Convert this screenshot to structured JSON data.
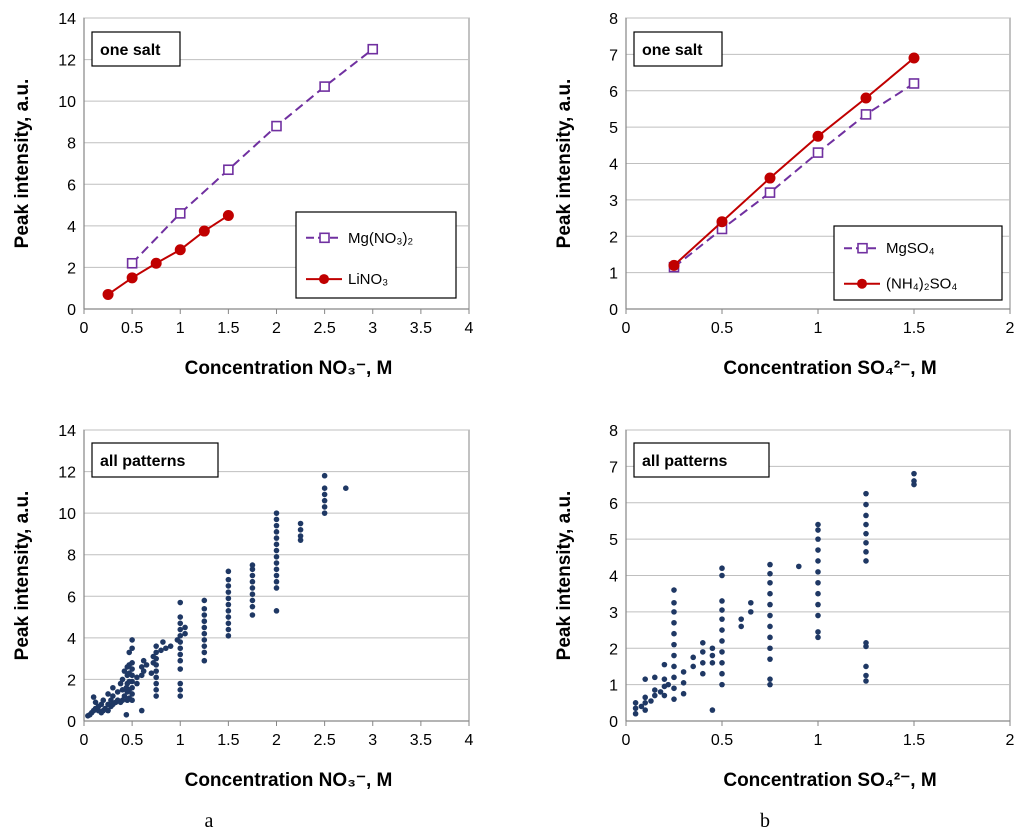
{
  "panel_labels": [
    "a",
    "b"
  ],
  "chart_data": [
    {
      "type": "line",
      "panel": "top-left",
      "title": "one salt",
      "xlabel": "Concentration NO₃⁻, M",
      "ylabel": "Peak intensity, a.u.",
      "xlim": [
        0,
        4
      ],
      "ylim": [
        0,
        14
      ],
      "xticks": [
        "0",
        "0.5",
        "1",
        "1.5",
        "2",
        "2.5",
        "3",
        "3.5",
        "4"
      ],
      "yticks": [
        "0",
        "2",
        "4",
        "6",
        "8",
        "10",
        "12",
        "14"
      ],
      "grid": true,
      "legend_position": "bottom-right",
      "series": [
        {
          "name": "Mg(NO₃)₂",
          "color": "#7030a0",
          "marker": "square-open",
          "line": "dashed",
          "x": [
            0.5,
            1.0,
            1.5,
            2.0,
            2.5,
            3.0
          ],
          "y": [
            2.2,
            4.6,
            6.7,
            8.8,
            10.7,
            12.5
          ]
        },
        {
          "name": "LiNO₃",
          "color": "#c00000",
          "marker": "circle-filled",
          "line": "solid",
          "x": [
            0.25,
            0.5,
            0.75,
            1.0,
            1.25,
            1.5
          ],
          "y": [
            0.7,
            1.5,
            2.2,
            2.85,
            3.75,
            4.5
          ]
        }
      ]
    },
    {
      "type": "line",
      "panel": "top-right",
      "title": "one salt",
      "xlabel": "Concentration SO₄²⁻, M",
      "ylabel": "Peak intensity, a.u.",
      "xlim": [
        0,
        2
      ],
      "ylim": [
        0,
        8
      ],
      "xticks": [
        "0",
        "0.5",
        "1",
        "1.5",
        "2"
      ],
      "yticks": [
        "0",
        "1",
        "2",
        "3",
        "4",
        "5",
        "6",
        "7",
        "8"
      ],
      "grid": true,
      "legend_position": "bottom-right",
      "series": [
        {
          "name": "MgSO₄",
          "color": "#7030a0",
          "marker": "square-open",
          "line": "dashed",
          "x": [
            0.25,
            0.5,
            0.75,
            1.0,
            1.25,
            1.5
          ],
          "y": [
            1.15,
            2.2,
            3.2,
            4.3,
            5.35,
            6.2
          ]
        },
        {
          "name": "(NH₄)₂SO₄",
          "color": "#c00000",
          "marker": "circle-filled",
          "line": "solid",
          "x": [
            0.25,
            0.5,
            0.75,
            1.0,
            1.25,
            1.5
          ],
          "y": [
            1.2,
            2.4,
            3.6,
            4.75,
            5.8,
            6.9
          ]
        }
      ]
    },
    {
      "type": "scatter",
      "panel": "bottom-left",
      "title": "all patterns",
      "xlabel": "Concentration NO₃⁻, M",
      "ylabel": "Peak intensity, a.u.",
      "xlim": [
        0,
        4
      ],
      "ylim": [
        0,
        14
      ],
      "xticks": [
        "0",
        "0.5",
        "1",
        "1.5",
        "2",
        "2.5",
        "3",
        "3.5",
        "4"
      ],
      "yticks": [
        "0",
        "2",
        "4",
        "6",
        "8",
        "10",
        "12",
        "14"
      ],
      "grid": true,
      "color": "#1f3864",
      "points": [
        [
          0.04,
          0.25
        ],
        [
          0.06,
          0.3
        ],
        [
          0.08,
          0.4
        ],
        [
          0.1,
          0.5
        ],
        [
          0.1,
          1.15
        ],
        [
          0.12,
          0.6
        ],
        [
          0.12,
          0.9
        ],
        [
          0.15,
          0.5
        ],
        [
          0.15,
          0.7
        ],
        [
          0.18,
          0.4
        ],
        [
          0.18,
          0.8
        ],
        [
          0.2,
          0.5
        ],
        [
          0.2,
          1.0
        ],
        [
          0.22,
          0.6
        ],
        [
          0.25,
          0.5
        ],
        [
          0.25,
          0.8
        ],
        [
          0.25,
          1.3
        ],
        [
          0.28,
          0.7
        ],
        [
          0.28,
          1.0
        ],
        [
          0.3,
          0.8
        ],
        [
          0.3,
          1.2
        ],
        [
          0.3,
          1.6
        ],
        [
          0.33,
          0.9
        ],
        [
          0.35,
          1.0
        ],
        [
          0.35,
          1.4
        ],
        [
          0.38,
          0.9
        ],
        [
          0.38,
          1.8
        ],
        [
          0.4,
          1.0
        ],
        [
          0.4,
          1.5
        ],
        [
          0.4,
          2.0
        ],
        [
          0.42,
          1.2
        ],
        [
          0.42,
          2.4
        ],
        [
          0.44,
          0.3
        ],
        [
          0.44,
          1.6
        ],
        [
          0.45,
          1.0
        ],
        [
          0.45,
          1.4
        ],
        [
          0.45,
          1.8
        ],
        [
          0.45,
          2.2
        ],
        [
          0.45,
          2.6
        ],
        [
          0.47,
          1.1
        ],
        [
          0.47,
          1.5
        ],
        [
          0.47,
          1.9
        ],
        [
          0.47,
          2.3
        ],
        [
          0.47,
          2.7
        ],
        [
          0.47,
          3.3
        ],
        [
          0.5,
          1.0
        ],
        [
          0.5,
          1.3
        ],
        [
          0.5,
          1.6
        ],
        [
          0.5,
          1.9
        ],
        [
          0.5,
          2.2
        ],
        [
          0.5,
          2.5
        ],
        [
          0.5,
          2.8
        ],
        [
          0.5,
          3.5
        ],
        [
          0.5,
          3.9
        ],
        [
          0.55,
          1.8
        ],
        [
          0.55,
          2.1
        ],
        [
          0.6,
          2.2
        ],
        [
          0.6,
          2.6
        ],
        [
          0.6,
          0.5
        ],
        [
          0.62,
          2.4
        ],
        [
          0.62,
          2.9
        ],
        [
          0.65,
          2.7
        ],
        [
          0.7,
          2.3
        ],
        [
          0.72,
          2.8
        ],
        [
          0.72,
          3.1
        ],
        [
          0.75,
          1.2
        ],
        [
          0.75,
          1.5
        ],
        [
          0.75,
          1.8
        ],
        [
          0.75,
          2.1
        ],
        [
          0.75,
          2.4
        ],
        [
          0.75,
          2.7
        ],
        [
          0.75,
          3.0
        ],
        [
          0.75,
          3.3
        ],
        [
          0.75,
          3.6
        ],
        [
          0.8,
          3.4
        ],
        [
          0.82,
          3.8
        ],
        [
          0.85,
          3.5
        ],
        [
          0.9,
          3.6
        ],
        [
          0.97,
          3.9
        ],
        [
          1.0,
          1.2
        ],
        [
          1.0,
          1.5
        ],
        [
          1.0,
          1.8
        ],
        [
          1.0,
          2.5
        ],
        [
          1.0,
          2.9
        ],
        [
          1.0,
          3.2
        ],
        [
          1.0,
          3.5
        ],
        [
          1.0,
          3.8
        ],
        [
          1.0,
          4.1
        ],
        [
          1.0,
          4.4
        ],
        [
          1.0,
          4.7
        ],
        [
          1.0,
          5.0
        ],
        [
          1.0,
          5.7
        ],
        [
          1.05,
          4.2
        ],
        [
          1.05,
          4.5
        ],
        [
          1.25,
          2.9
        ],
        [
          1.25,
          3.3
        ],
        [
          1.25,
          3.6
        ],
        [
          1.25,
          3.9
        ],
        [
          1.25,
          4.2
        ],
        [
          1.25,
          4.5
        ],
        [
          1.25,
          4.8
        ],
        [
          1.25,
          5.1
        ],
        [
          1.25,
          5.4
        ],
        [
          1.25,
          5.8
        ],
        [
          1.5,
          4.1
        ],
        [
          1.5,
          4.4
        ],
        [
          1.5,
          4.7
        ],
        [
          1.5,
          5.0
        ],
        [
          1.5,
          5.3
        ],
        [
          1.5,
          5.6
        ],
        [
          1.5,
          5.9
        ],
        [
          1.5,
          6.2
        ],
        [
          1.5,
          6.5
        ],
        [
          1.5,
          6.8
        ],
        [
          1.5,
          7.2
        ],
        [
          1.75,
          5.1
        ],
        [
          1.75,
          5.5
        ],
        [
          1.75,
          5.8
        ],
        [
          1.75,
          6.1
        ],
        [
          1.75,
          6.4
        ],
        [
          1.75,
          6.7
        ],
        [
          1.75,
          7.0
        ],
        [
          1.75,
          7.3
        ],
        [
          1.75,
          7.5
        ],
        [
          2.0,
          5.3
        ],
        [
          2.0,
          6.4
        ],
        [
          2.0,
          6.7
        ],
        [
          2.0,
          7.0
        ],
        [
          2.0,
          7.3
        ],
        [
          2.0,
          7.6
        ],
        [
          2.0,
          7.9
        ],
        [
          2.0,
          8.2
        ],
        [
          2.0,
          8.5
        ],
        [
          2.0,
          8.8
        ],
        [
          2.0,
          9.1
        ],
        [
          2.0,
          9.4
        ],
        [
          2.0,
          9.7
        ],
        [
          2.0,
          10.0
        ],
        [
          2.25,
          8.7
        ],
        [
          2.25,
          8.9
        ],
        [
          2.25,
          9.2
        ],
        [
          2.25,
          9.5
        ],
        [
          2.5,
          10.0
        ],
        [
          2.5,
          10.3
        ],
        [
          2.5,
          10.6
        ],
        [
          2.5,
          10.9
        ],
        [
          2.5,
          11.2
        ],
        [
          2.5,
          11.8
        ],
        [
          2.72,
          11.2
        ]
      ]
    },
    {
      "type": "scatter",
      "panel": "bottom-right",
      "title": "all patterns",
      "xlabel": "Concentration SO₄²⁻, M",
      "ylabel": "Peak intensity, a.u.",
      "xlim": [
        0,
        2
      ],
      "ylim": [
        0,
        8
      ],
      "xticks": [
        "0",
        "0.5",
        "1",
        "1.5",
        "2"
      ],
      "yticks": [
        "0",
        "1",
        "2",
        "3",
        "4",
        "5",
        "6",
        "7",
        "8"
      ],
      "grid": true,
      "color": "#1f3864",
      "points": [
        [
          0.05,
          0.2
        ],
        [
          0.05,
          0.35
        ],
        [
          0.05,
          0.5
        ],
        [
          0.08,
          0.4
        ],
        [
          0.1,
          0.3
        ],
        [
          0.1,
          0.5
        ],
        [
          0.1,
          0.65
        ],
        [
          0.1,
          1.15
        ],
        [
          0.13,
          0.55
        ],
        [
          0.15,
          0.7
        ],
        [
          0.15,
          0.85
        ],
        [
          0.15,
          1.2
        ],
        [
          0.18,
          0.8
        ],
        [
          0.2,
          0.7
        ],
        [
          0.2,
          0.95
        ],
        [
          0.2,
          1.15
        ],
        [
          0.2,
          1.55
        ],
        [
          0.22,
          1.0
        ],
        [
          0.25,
          0.6
        ],
        [
          0.25,
          0.9
        ],
        [
          0.25,
          1.2
        ],
        [
          0.25,
          1.5
        ],
        [
          0.25,
          1.8
        ],
        [
          0.25,
          2.1
        ],
        [
          0.25,
          2.4
        ],
        [
          0.25,
          2.7
        ],
        [
          0.25,
          3.0
        ],
        [
          0.25,
          3.25
        ],
        [
          0.25,
          3.6
        ],
        [
          0.3,
          0.75
        ],
        [
          0.3,
          1.05
        ],
        [
          0.3,
          1.35
        ],
        [
          0.35,
          1.5
        ],
        [
          0.35,
          1.75
        ],
        [
          0.4,
          1.6
        ],
        [
          0.4,
          1.9
        ],
        [
          0.4,
          2.15
        ],
        [
          0.4,
          1.3
        ],
        [
          0.45,
          0.3
        ],
        [
          0.45,
          1.6
        ],
        [
          0.45,
          1.8
        ],
        [
          0.45,
          2.0
        ],
        [
          0.5,
          1.0
        ],
        [
          0.5,
          1.3
        ],
        [
          0.5,
          1.6
        ],
        [
          0.5,
          1.9
        ],
        [
          0.5,
          2.2
        ],
        [
          0.5,
          2.5
        ],
        [
          0.5,
          2.8
        ],
        [
          0.5,
          3.05
        ],
        [
          0.5,
          3.3
        ],
        [
          0.5,
          4.0
        ],
        [
          0.5,
          4.2
        ],
        [
          0.6,
          2.6
        ],
        [
          0.6,
          2.8
        ],
        [
          0.65,
          3.0
        ],
        [
          0.65,
          3.25
        ],
        [
          0.75,
          1.0
        ],
        [
          0.75,
          1.15
        ],
        [
          0.75,
          1.7
        ],
        [
          0.75,
          2.0
        ],
        [
          0.75,
          2.3
        ],
        [
          0.75,
          2.6
        ],
        [
          0.75,
          2.9
        ],
        [
          0.75,
          3.2
        ],
        [
          0.75,
          3.5
        ],
        [
          0.75,
          3.8
        ],
        [
          0.75,
          4.05
        ],
        [
          0.75,
          4.3
        ],
        [
          0.9,
          4.25
        ],
        [
          1.0,
          2.3
        ],
        [
          1.0,
          2.45
        ],
        [
          1.0,
          2.9
        ],
        [
          1.0,
          3.2
        ],
        [
          1.0,
          3.5
        ],
        [
          1.0,
          3.8
        ],
        [
          1.0,
          4.1
        ],
        [
          1.0,
          4.4
        ],
        [
          1.0,
          4.7
        ],
        [
          1.0,
          5.0
        ],
        [
          1.0,
          5.25
        ],
        [
          1.0,
          5.4
        ],
        [
          1.25,
          1.1
        ],
        [
          1.25,
          1.25
        ],
        [
          1.25,
          1.5
        ],
        [
          1.25,
          2.05
        ],
        [
          1.25,
          2.15
        ],
        [
          1.25,
          4.4
        ],
        [
          1.25,
          4.65
        ],
        [
          1.25,
          4.9
        ],
        [
          1.25,
          5.15
        ],
        [
          1.25,
          5.4
        ],
        [
          1.25,
          5.65
        ],
        [
          1.25,
          5.95
        ],
        [
          1.25,
          6.25
        ],
        [
          1.5,
          6.5
        ],
        [
          1.5,
          6.6
        ],
        [
          1.5,
          6.8
        ]
      ]
    }
  ]
}
